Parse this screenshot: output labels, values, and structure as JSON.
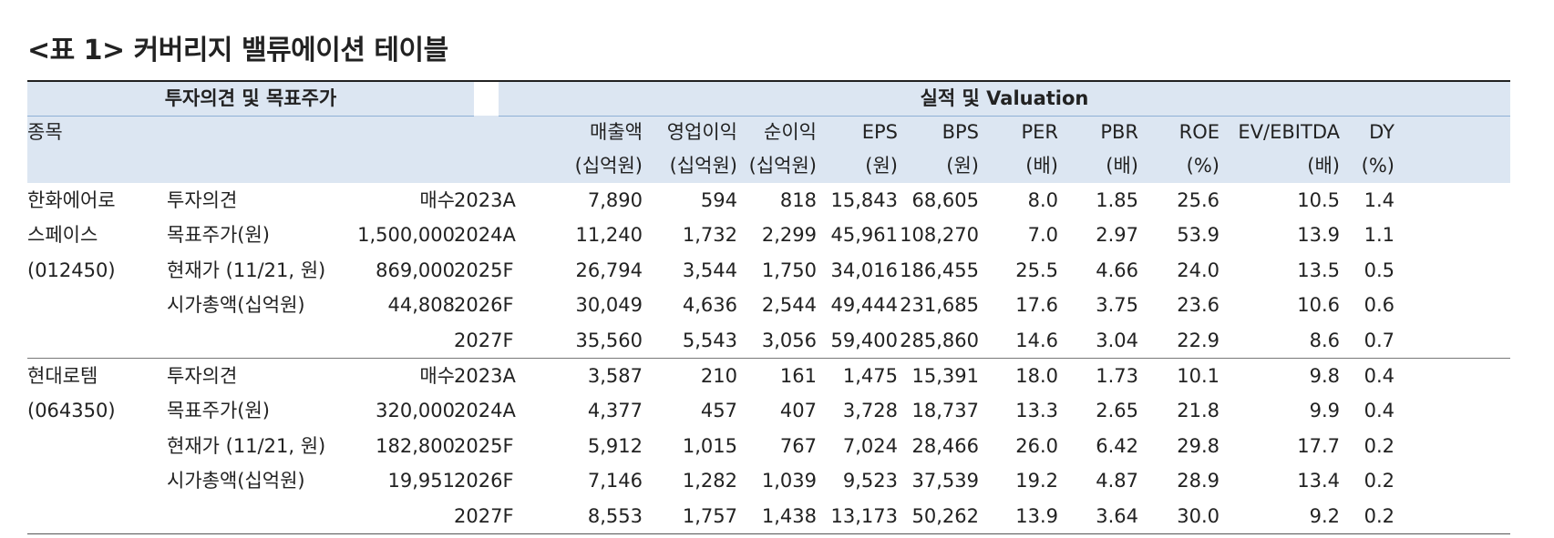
{
  "title": "<표 1> 커버리지 밸류에이션 테이블",
  "header": {
    "group_left": "투자의견 및 목표주가",
    "group_right": "실적 및 Valuation",
    "stock_label": "종목",
    "columns": [
      {
        "name": "매출액",
        "unit": "(십억원)"
      },
      {
        "name": "영업이익",
        "unit": "(십억원)"
      },
      {
        "name": "순이익",
        "unit": "(십억원)"
      },
      {
        "name": "EPS",
        "unit": "(원)"
      },
      {
        "name": "BPS",
        "unit": "(원)"
      },
      {
        "name": "PER",
        "unit": "(배)"
      },
      {
        "name": "PBR",
        "unit": "(배)"
      },
      {
        "name": "ROE",
        "unit": "(%)"
      },
      {
        "name": "EV/EBITDA",
        "unit": "(배)"
      },
      {
        "name": "DY",
        "unit": "(%)"
      }
    ]
  },
  "companies": [
    {
      "name_lines": [
        "한화에어로",
        "스페이스",
        "(012450)"
      ],
      "info": [
        {
          "label": "투자의견",
          "value": "매수"
        },
        {
          "label": "목표주가(원)",
          "value": "1,500,000"
        },
        {
          "label": "현재가 (11/21, 원)",
          "value": "869,000"
        },
        {
          "label": "시가총액(십억원)",
          "value": "44,808"
        }
      ],
      "rows": [
        {
          "year": "2023A",
          "vals": [
            "7,890",
            "594",
            "818",
            "15,843",
            "68,605",
            "8.0",
            "1.85",
            "25.6",
            "10.5",
            "1.4"
          ]
        },
        {
          "year": "2024A",
          "vals": [
            "11,240",
            "1,732",
            "2,299",
            "45,961",
            "108,270",
            "7.0",
            "2.97",
            "53.9",
            "13.9",
            "1.1"
          ]
        },
        {
          "year": "2025F",
          "vals": [
            "26,794",
            "3,544",
            "1,750",
            "34,016",
            "186,455",
            "25.5",
            "4.66",
            "24.0",
            "13.5",
            "0.5"
          ]
        },
        {
          "year": "2026F",
          "vals": [
            "30,049",
            "4,636",
            "2,544",
            "49,444",
            "231,685",
            "17.6",
            "3.75",
            "23.6",
            "10.6",
            "0.6"
          ]
        },
        {
          "year": "2027F",
          "vals": [
            "35,560",
            "5,543",
            "3,056",
            "59,400",
            "285,860",
            "14.6",
            "3.04",
            "22.9",
            "8.6",
            "0.7"
          ]
        }
      ]
    },
    {
      "name_lines": [
        "현대로템",
        "(064350)"
      ],
      "info": [
        {
          "label": "투자의견",
          "value": "매수"
        },
        {
          "label": "목표주가(원)",
          "value": "320,000"
        },
        {
          "label": "현재가 (11/21, 원)",
          "value": "182,800"
        },
        {
          "label": "시가총액(십억원)",
          "value": "19,951"
        }
      ],
      "rows": [
        {
          "year": "2023A",
          "vals": [
            "3,587",
            "210",
            "161",
            "1,475",
            "15,391",
            "18.0",
            "1.73",
            "10.1",
            "9.8",
            "0.4"
          ]
        },
        {
          "year": "2024A",
          "vals": [
            "4,377",
            "457",
            "407",
            "3,728",
            "18,737",
            "13.3",
            "2.65",
            "21.8",
            "9.9",
            "0.4"
          ]
        },
        {
          "year": "2025F",
          "vals": [
            "5,912",
            "1,015",
            "767",
            "7,024",
            "28,466",
            "26.0",
            "6.42",
            "29.8",
            "17.7",
            "0.2"
          ]
        },
        {
          "year": "2026F",
          "vals": [
            "7,146",
            "1,282",
            "1,039",
            "9,523",
            "37,539",
            "19.2",
            "4.87",
            "28.9",
            "13.4",
            "0.2"
          ]
        },
        {
          "year": "2027F",
          "vals": [
            "8,553",
            "1,757",
            "1,438",
            "13,173",
            "50,262",
            "13.9",
            "3.64",
            "30.0",
            "9.2",
            "0.2"
          ]
        }
      ]
    }
  ]
}
